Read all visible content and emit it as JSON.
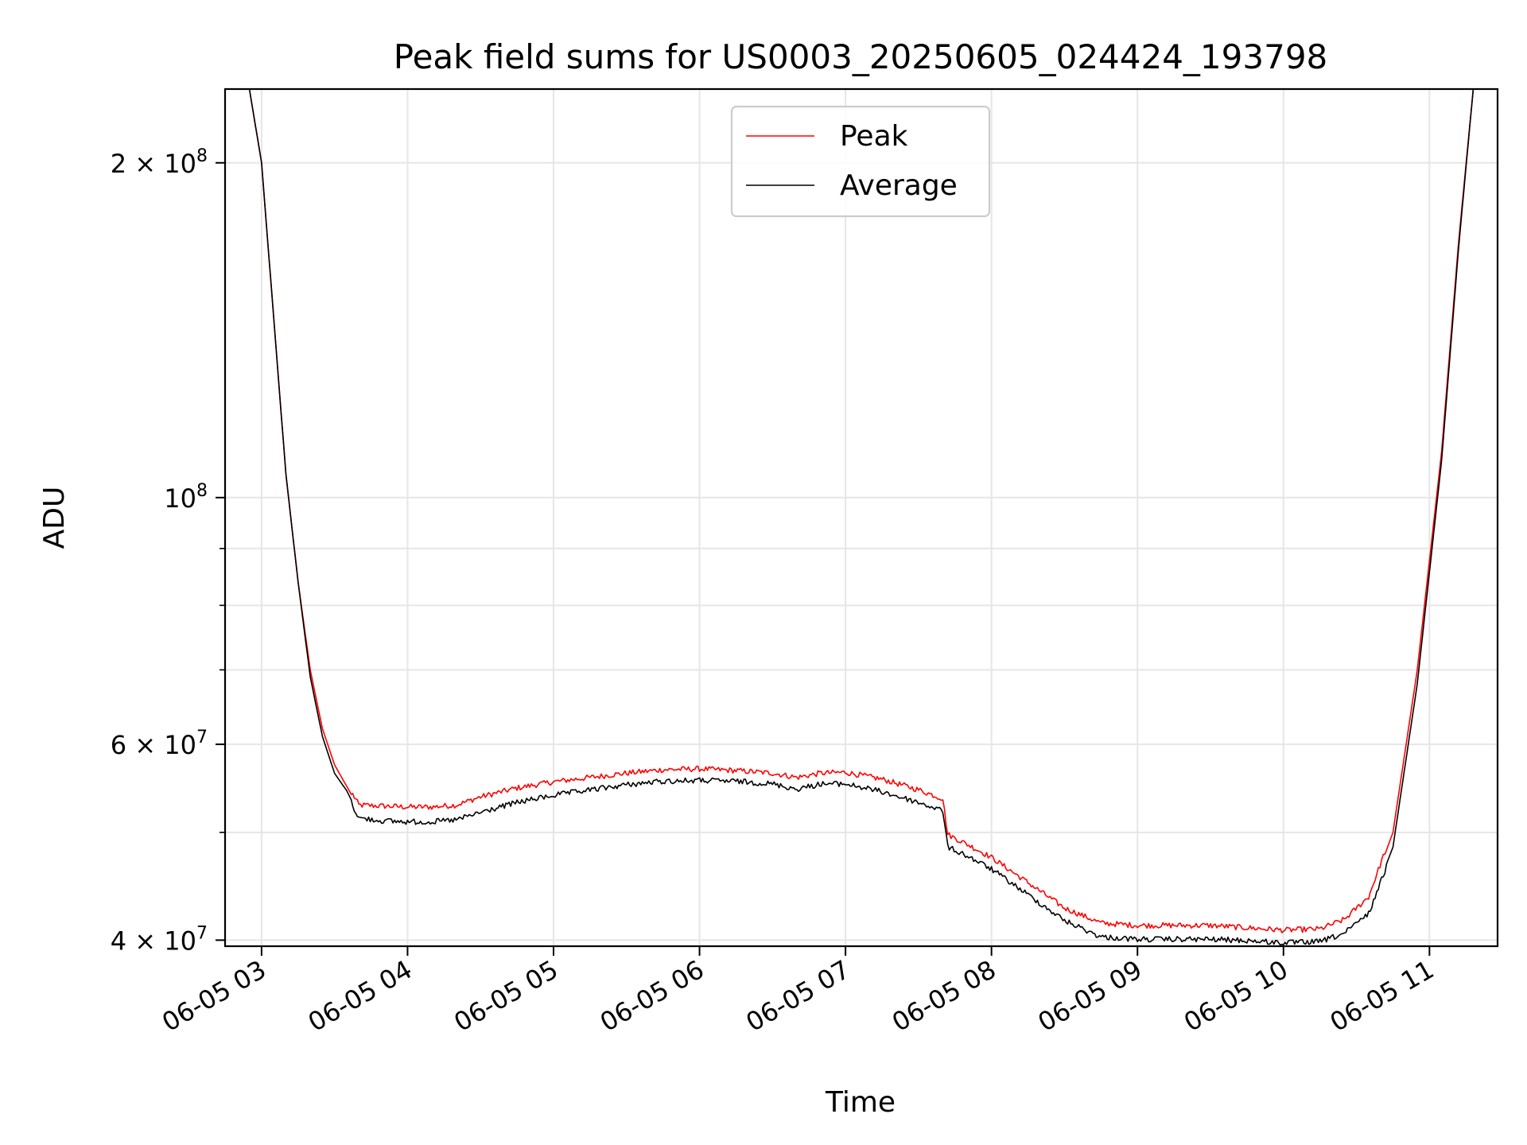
{
  "chart_data": {
    "type": "line",
    "title": "Peak field sums for US0003_20250605_024424_193798",
    "xlabel": "Time",
    "ylabel": "ADU",
    "x_scale": "time",
    "y_scale": "log",
    "xlim": [
      "2025-06-05 02:45",
      "2025-06-05 11:28"
    ],
    "ylim": [
      39500000,
      233000000
    ],
    "x_ticks": [
      {
        "t": "2025-06-05 03:00",
        "label": "06-05 03"
      },
      {
        "t": "2025-06-05 04:00",
        "label": "06-05 04"
      },
      {
        "t": "2025-06-05 05:00",
        "label": "06-05 05"
      },
      {
        "t": "2025-06-05 06:00",
        "label": "06-05 06"
      },
      {
        "t": "2025-06-05 07:00",
        "label": "06-05 07"
      },
      {
        "t": "2025-06-05 08:00",
        "label": "06-05 08"
      },
      {
        "t": "2025-06-05 09:00",
        "label": "06-05 09"
      },
      {
        "t": "2025-06-05 10:00",
        "label": "06-05 10"
      },
      {
        "t": "2025-06-05 11:00",
        "label": "06-05 11"
      }
    ],
    "y_ticks": [
      {
        "value": 40000000,
        "base": "4 × 10",
        "exp": "7"
      },
      {
        "value": 60000000,
        "base": "6 × 10",
        "exp": "7"
      },
      {
        "value": 100000000,
        "base": "10",
        "exp": "8"
      },
      {
        "value": 200000000,
        "base": "2 × 10",
        "exp": "8"
      }
    ],
    "y_minor_ticks": [
      50000000,
      70000000,
      80000000,
      90000000
    ],
    "grid": true,
    "legend": "upper center",
    "series": [
      {
        "name": "Peak",
        "color": "#ff0000",
        "points": [
          [
            "2025-06-05 02:45",
            233000000
          ],
          [
            "2025-06-05 02:55",
            233000000
          ],
          [
            "2025-06-05 03:00",
            200000000
          ],
          [
            "2025-06-05 03:05",
            145000000
          ],
          [
            "2025-06-05 03:10",
            105000000
          ],
          [
            "2025-06-05 03:15",
            84000000
          ],
          [
            "2025-06-05 03:20",
            70000000
          ],
          [
            "2025-06-05 03:25",
            62000000
          ],
          [
            "2025-06-05 03:30",
            57500000
          ],
          [
            "2025-06-05 03:35",
            55000000
          ],
          [
            "2025-06-05 03:40",
            52600000
          ],
          [
            "2025-06-05 03:50",
            52500000
          ],
          [
            "2025-06-05 04:00",
            52400000
          ],
          [
            "2025-06-05 04:10",
            52400000
          ],
          [
            "2025-06-05 04:20",
            52600000
          ],
          [
            "2025-06-05 04:30",
            53500000
          ],
          [
            "2025-06-05 04:45",
            54500000
          ],
          [
            "2025-06-05 05:00",
            55200000
          ],
          [
            "2025-06-05 05:15",
            55700000
          ],
          [
            "2025-06-05 05:30",
            56200000
          ],
          [
            "2025-06-05 05:45",
            56600000
          ],
          [
            "2025-06-05 06:00",
            56700000
          ],
          [
            "2025-06-05 06:15",
            56500000
          ],
          [
            "2025-06-05 06:30",
            56200000
          ],
          [
            "2025-06-05 06:40",
            55700000
          ],
          [
            "2025-06-05 06:50",
            56200000
          ],
          [
            "2025-06-05 07:00",
            56300000
          ],
          [
            "2025-06-05 07:15",
            55500000
          ],
          [
            "2025-06-05 07:30",
            54300000
          ],
          [
            "2025-06-05 07:40",
            53300000
          ],
          [
            "2025-06-05 07:42",
            49500000
          ],
          [
            "2025-06-05 07:50",
            48500000
          ],
          [
            "2025-06-05 08:00",
            47200000
          ],
          [
            "2025-06-05 08:15",
            44800000
          ],
          [
            "2025-06-05 08:30",
            42500000
          ],
          [
            "2025-06-05 08:45",
            41200000
          ],
          [
            "2025-06-05 09:00",
            41000000
          ],
          [
            "2025-06-05 09:15",
            41000000
          ],
          [
            "2025-06-05 09:30",
            41000000
          ],
          [
            "2025-06-05 09:45",
            40800000
          ],
          [
            "2025-06-05 10:00",
            40600000
          ],
          [
            "2025-06-05 10:15",
            40700000
          ],
          [
            "2025-06-05 10:25",
            41500000
          ],
          [
            "2025-06-05 10:35",
            43500000
          ],
          [
            "2025-06-05 10:45",
            50000000
          ],
          [
            "2025-06-05 10:55",
            70000000
          ],
          [
            "2025-06-05 11:05",
            110000000
          ],
          [
            "2025-06-05 11:12",
            170000000
          ],
          [
            "2025-06-05 11:18",
            233000000
          ],
          [
            "2025-06-05 11:28",
            233000000
          ]
        ]
      },
      {
        "name": "Average",
        "color": "#000000",
        "points": [
          [
            "2025-06-05 02:45",
            233000000
          ],
          [
            "2025-06-05 02:55",
            233000000
          ],
          [
            "2025-06-05 03:00",
            200000000
          ],
          [
            "2025-06-05 03:05",
            145000000
          ],
          [
            "2025-06-05 03:10",
            105000000
          ],
          [
            "2025-06-05 03:15",
            84000000
          ],
          [
            "2025-06-05 03:20",
            69000000
          ],
          [
            "2025-06-05 03:25",
            61000000
          ],
          [
            "2025-06-05 03:30",
            56500000
          ],
          [
            "2025-06-05 03:35",
            54500000
          ],
          [
            "2025-06-05 03:40",
            51800000
          ],
          [
            "2025-06-05 03:50",
            51500000
          ],
          [
            "2025-06-05 04:00",
            51400000
          ],
          [
            "2025-06-05 04:10",
            51400000
          ],
          [
            "2025-06-05 04:20",
            51600000
          ],
          [
            "2025-06-05 04:30",
            52400000
          ],
          [
            "2025-06-05 04:45",
            53500000
          ],
          [
            "2025-06-05 05:00",
            54300000
          ],
          [
            "2025-06-05 05:15",
            54900000
          ],
          [
            "2025-06-05 05:30",
            55500000
          ],
          [
            "2025-06-05 05:45",
            55900000
          ],
          [
            "2025-06-05 06:00",
            56000000
          ],
          [
            "2025-06-05 06:15",
            55900000
          ],
          [
            "2025-06-05 06:30",
            55600000
          ],
          [
            "2025-06-05 06:40",
            55000000
          ],
          [
            "2025-06-05 06:50",
            55600000
          ],
          [
            "2025-06-05 07:00",
            55600000
          ],
          [
            "2025-06-05 07:15",
            54700000
          ],
          [
            "2025-06-05 07:30",
            53500000
          ],
          [
            "2025-06-05 07:40",
            52600000
          ],
          [
            "2025-06-05 07:42",
            48800000
          ],
          [
            "2025-06-05 07:50",
            47900000
          ],
          [
            "2025-06-05 08:00",
            46600000
          ],
          [
            "2025-06-05 08:15",
            44200000
          ],
          [
            "2025-06-05 08:30",
            41900000
          ],
          [
            "2025-06-05 08:45",
            40500000
          ],
          [
            "2025-06-05 09:00",
            40300000
          ],
          [
            "2025-06-05 09:15",
            40300000
          ],
          [
            "2025-06-05 09:30",
            40300000
          ],
          [
            "2025-06-05 09:45",
            40200000
          ],
          [
            "2025-06-05 10:00",
            40000000
          ],
          [
            "2025-06-05 10:15",
            40100000
          ],
          [
            "2025-06-05 10:25",
            40800000
          ],
          [
            "2025-06-05 10:35",
            42500000
          ],
          [
            "2025-06-05 10:45",
            48500000
          ],
          [
            "2025-06-05 10:55",
            68000000
          ],
          [
            "2025-06-05 11:05",
            108000000
          ],
          [
            "2025-06-05 11:12",
            168000000
          ],
          [
            "2025-06-05 11:18",
            233000000
          ],
          [
            "2025-06-05 11:28",
            233000000
          ]
        ]
      }
    ]
  }
}
